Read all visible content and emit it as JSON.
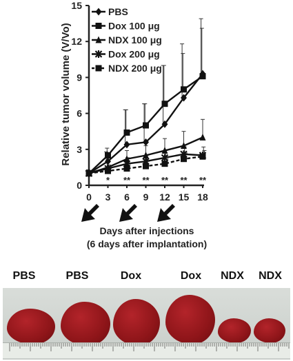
{
  "chart_data": {
    "type": "line",
    "title": "",
    "xlabel": "Days after injections",
    "xlabel2": "(6 days after implantation)",
    "ylabel": "Relative tumor volume (V/Vo)",
    "x": [
      0,
      3,
      6,
      9,
      12,
      15,
      18
    ],
    "x_ticks": [
      "0",
      "3",
      "6",
      "9",
      "12",
      "15",
      "18"
    ],
    "y_ticks": [
      "0",
      "3",
      "6",
      "9",
      "12",
      "15"
    ],
    "xlim": [
      0,
      18
    ],
    "ylim": [
      0,
      15
    ],
    "grid": false,
    "legend_position": "top-left",
    "series": [
      {
        "name": "PBS",
        "marker": "diamond",
        "dashed": false,
        "values": [
          1.0,
          2.0,
          3.4,
          3.6,
          5.1,
          7.3,
          9.3
        ],
        "err": [
          0.2,
          0.8,
          2.9,
          3.2,
          4.9,
          4.5,
          4.6
        ]
      },
      {
        "name": "Dox 100 μg",
        "marker": "square",
        "dashed": false,
        "values": [
          1.0,
          2.5,
          4.4,
          5.0,
          6.8,
          8.0,
          9.1
        ],
        "err": [
          0.3,
          0.6,
          1.9,
          1.8,
          3.2,
          3.0,
          4.0
        ]
      },
      {
        "name": "NDX 100 μg",
        "marker": "triangle",
        "dashed": false,
        "values": [
          1.0,
          1.5,
          2.2,
          2.5,
          2.9,
          3.3,
          4.0
        ],
        "err": [
          0.2,
          0.4,
          0.7,
          0.8,
          1.0,
          1.2,
          1.5
        ]
      },
      {
        "name": "Dox 200 μg",
        "marker": "star",
        "dashed": false,
        "values": [
          1.0,
          1.4,
          1.8,
          2.0,
          2.3,
          2.6,
          2.5
        ],
        "err": [
          0.2,
          0.3,
          0.5,
          0.5,
          0.6,
          0.6,
          0.7
        ]
      },
      {
        "name": "NDX 200 μg",
        "marker": "square",
        "dashed": true,
        "values": [
          1.0,
          1.2,
          1.4,
          1.6,
          1.8,
          2.2,
          2.4
        ],
        "err": [
          0.2,
          0.2,
          0.3,
          0.4,
          0.4,
          0.5,
          0.5
        ]
      }
    ],
    "significance": [
      {
        "x": 3,
        "text": "*"
      },
      {
        "x": 6,
        "text": "**"
      },
      {
        "x": 9,
        "text": "**"
      },
      {
        "x": 12,
        "text": "**"
      },
      {
        "x": 15,
        "text": "**"
      },
      {
        "x": 18,
        "text": "**"
      }
    ],
    "injection_days": [
      0,
      6,
      12
    ]
  },
  "photo": {
    "labels": [
      "PBS",
      "PBS",
      "Dox",
      "Dox",
      "NDX",
      "NDX"
    ]
  }
}
